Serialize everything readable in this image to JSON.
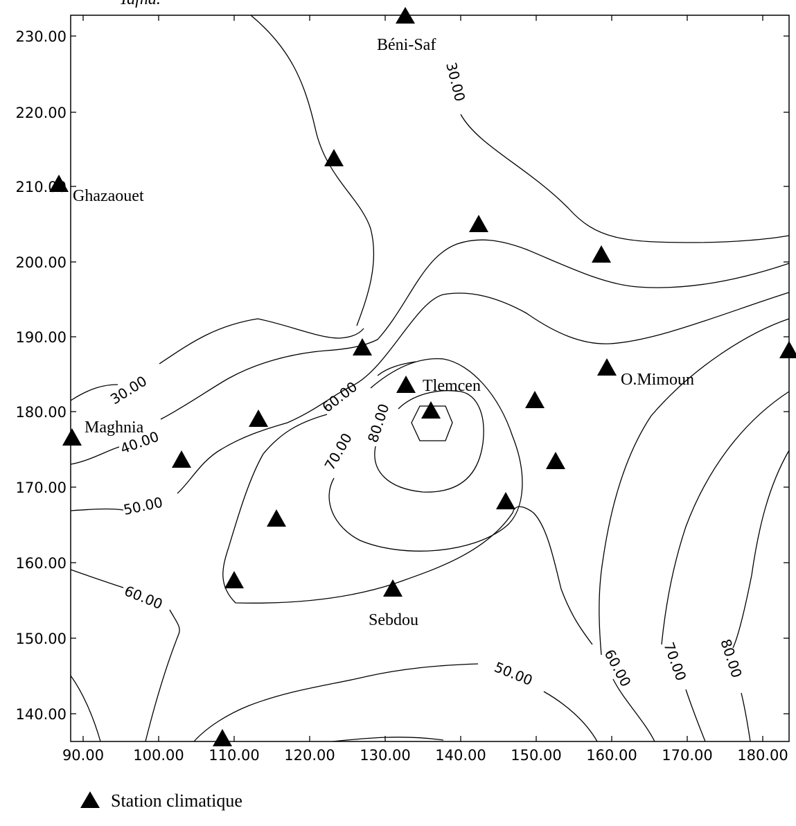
{
  "top_partial_label": "Tafna.",
  "axes": {
    "x_ticks": [
      "90.00",
      "100.00",
      "110.00",
      "120.00",
      "130.00",
      "140.00",
      "150.00",
      "160.00",
      "170.00",
      "180.00"
    ],
    "y_ticks": [
      "230.00",
      "220.00",
      "210.00",
      "200.00",
      "190.00",
      "180.00",
      "170.00",
      "160.00",
      "150.00",
      "140.00"
    ]
  },
  "contour_labels": [
    {
      "text": "30.00"
    },
    {
      "text": "30.00"
    },
    {
      "text": "40.00"
    },
    {
      "text": "50.00"
    },
    {
      "text": "60.00"
    },
    {
      "text": "70.00"
    },
    {
      "text": "80.00"
    },
    {
      "text": "60.00"
    },
    {
      "text": "50.00"
    },
    {
      "text": "60.00"
    },
    {
      "text": "70.00"
    },
    {
      "text": "80.00"
    }
  ],
  "places": [
    {
      "name": "Béni-Saf"
    },
    {
      "name": "Ghazaouet"
    },
    {
      "name": "Tlemcen"
    },
    {
      "name": "O.Mimoun"
    },
    {
      "name": "Maghnia"
    },
    {
      "name": "Sebdou"
    }
  ],
  "legend": {
    "label": "Station climatique"
  }
}
